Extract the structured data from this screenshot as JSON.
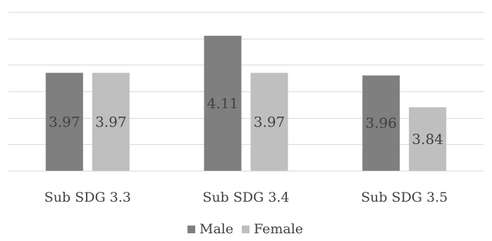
{
  "chart_data": {
    "type": "bar",
    "categories": [
      "Sub SDG 3.3",
      "Sub SDG 3.4",
      "Sub SDG 3.5"
    ],
    "series": [
      {
        "name": "Male",
        "values": [
          3.97,
          4.11,
          3.96
        ],
        "color": "#7f7f7f"
      },
      {
        "name": "Female",
        "values": [
          3.97,
          3.97,
          3.84
        ],
        "color": "#bfbfbf"
      }
    ],
    "ylim": [
      3.6,
      4.2
    ],
    "grid": true,
    "legend_position": "bottom",
    "gridline_color": "#d9d9d9"
  }
}
